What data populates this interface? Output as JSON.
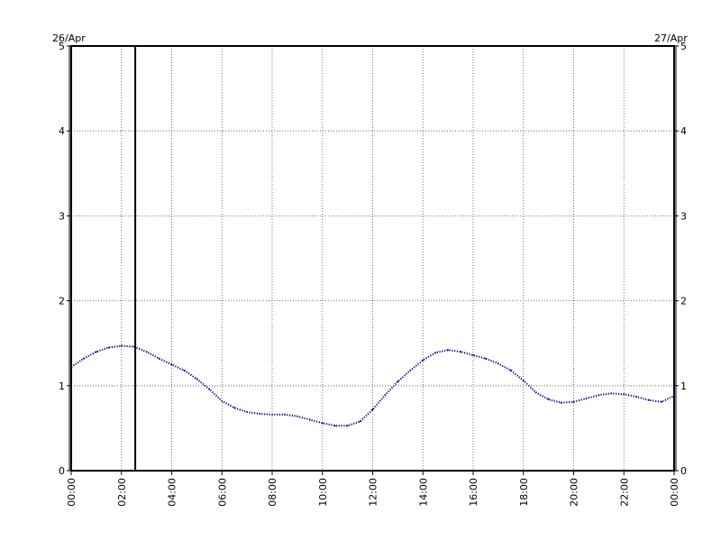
{
  "chart_data": {
    "type": "line",
    "date_left": "26/Apr",
    "date_right": "27/Apr",
    "y_ticks": [
      "0",
      "1",
      "2",
      "3",
      "4",
      "5"
    ],
    "x_ticks": [
      "00:00",
      "02:00",
      "04:00",
      "06:00",
      "08:00",
      "10:00",
      "12:00",
      "14:00",
      "16:00",
      "18:00",
      "20:00",
      "22:00",
      "00:00"
    ],
    "x_range_hours": [
      0,
      24
    ],
    "ylim": [
      0,
      5
    ],
    "grid": true,
    "marker_hour": 2.55,
    "series": [
      {
        "color": "#00008b",
        "x": [
          0,
          0.5,
          1,
          1.5,
          2,
          2.5,
          3,
          3.5,
          4,
          4.5,
          5,
          5.5,
          6,
          6.5,
          7,
          7.5,
          8,
          8.5,
          9,
          9.5,
          10,
          10.5,
          11,
          11.5,
          12,
          12.5,
          13,
          13.5,
          14,
          14.5,
          15,
          15.5,
          16,
          16.5,
          17,
          17.5,
          18,
          18.5,
          19,
          19.5,
          20,
          20.5,
          21,
          21.5,
          22,
          22.5,
          23,
          23.5,
          24
        ],
        "y": [
          1.22,
          1.32,
          1.4,
          1.45,
          1.47,
          1.46,
          1.4,
          1.32,
          1.25,
          1.18,
          1.08,
          0.96,
          0.82,
          0.74,
          0.69,
          0.67,
          0.66,
          0.66,
          0.64,
          0.6,
          0.56,
          0.53,
          0.53,
          0.58,
          0.72,
          0.89,
          1.05,
          1.18,
          1.3,
          1.39,
          1.42,
          1.4,
          1.36,
          1.32,
          1.26,
          1.18,
          1.06,
          0.92,
          0.84,
          0.8,
          0.81,
          0.85,
          0.89,
          0.91,
          0.9,
          0.87,
          0.83,
          0.81,
          0.88
        ]
      }
    ]
  }
}
